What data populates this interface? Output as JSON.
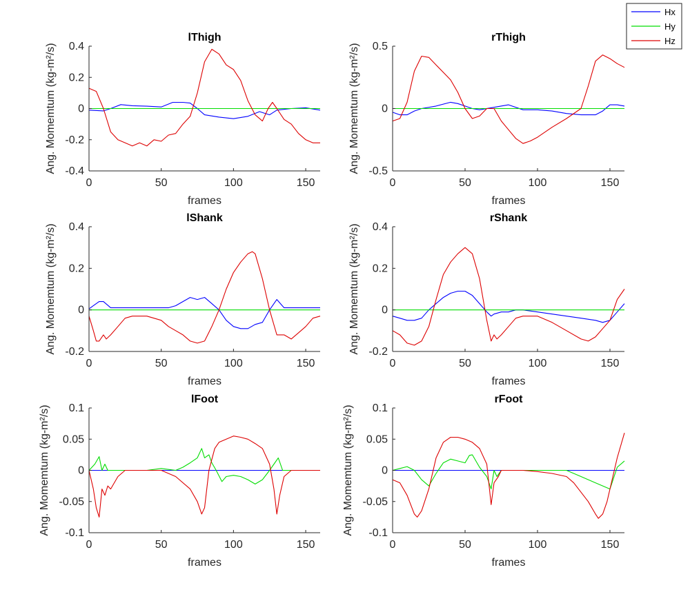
{
  "legend": {
    "entries": [
      {
        "name": "Hx",
        "color": "#0000ff"
      },
      {
        "name": "Hy",
        "color": "#00dd00"
      },
      {
        "name": "Hz",
        "color": "#dd0000"
      }
    ]
  },
  "chart_data": [
    {
      "type": "line",
      "title": "lThigh",
      "xlabel": "frames",
      "ylabel": "Ang. Momemtum (kg-m²/s)",
      "xlim": [
        0,
        160
      ],
      "ylim": [
        -0.4,
        0.4
      ],
      "xticks": [
        0,
        50,
        100,
        150
      ],
      "xtick_labels": [
        "0",
        "50",
        "100",
        "150"
      ],
      "yticks": [
        -0.4,
        -0.2,
        0,
        0.2,
        0.4
      ],
      "ytick_labels": [
        "-0.4",
        "-0.2",
        "0",
        "0.2",
        "0.4"
      ],
      "series": [
        {
          "name": "Hx",
          "color": "#0000ff",
          "x": [
            0,
            10,
            15,
            22,
            30,
            40,
            50,
            58,
            65,
            70,
            75,
            80,
            90,
            100,
            110,
            118,
            125,
            130,
            140,
            150,
            160
          ],
          "y": [
            -0.01,
            -0.015,
            0.0,
            0.025,
            0.018,
            0.015,
            0.01,
            0.04,
            0.04,
            0.035,
            0.0,
            -0.04,
            -0.055,
            -0.065,
            -0.05,
            -0.02,
            -0.04,
            -0.01,
            0.0,
            0.005,
            -0.01
          ]
        },
        {
          "name": "Hy",
          "color": "#00dd00",
          "x": [
            0,
            160
          ],
          "y": [
            0.0,
            0.0
          ]
        },
        {
          "name": "Hz",
          "color": "#dd0000",
          "x": [
            0,
            5,
            10,
            15,
            20,
            30,
            35,
            40,
            45,
            50,
            55,
            60,
            65,
            70,
            75,
            80,
            85,
            90,
            95,
            100,
            105,
            110,
            115,
            120,
            124,
            127,
            130,
            135,
            140,
            145,
            150,
            155,
            160
          ],
          "y": [
            0.13,
            0.11,
            0.0,
            -0.15,
            -0.2,
            -0.24,
            -0.22,
            -0.24,
            -0.2,
            -0.21,
            -0.17,
            -0.16,
            -0.1,
            -0.05,
            0.1,
            0.3,
            0.38,
            0.35,
            0.28,
            0.25,
            0.18,
            0.05,
            -0.04,
            -0.08,
            0.0,
            0.04,
            0.0,
            -0.07,
            -0.1,
            -0.16,
            -0.2,
            -0.22,
            -0.22
          ]
        }
      ]
    },
    {
      "type": "line",
      "title": "rThigh",
      "xlabel": "frames",
      "ylabel": "Ang. Momemtum (kg-m²/s)",
      "xlim": [
        0,
        160
      ],
      "ylim": [
        -0.5,
        0.5
      ],
      "xticks": [
        0,
        50,
        100,
        150
      ],
      "xtick_labels": [
        "0",
        "50",
        "100",
        "150"
      ],
      "yticks": [
        -0.5,
        0,
        0.5
      ],
      "ytick_labels": [
        "-0.5",
        "0",
        "0.5"
      ],
      "series": [
        {
          "name": "Hx",
          "color": "#0000ff",
          "x": [
            0,
            5,
            10,
            15,
            20,
            30,
            40,
            45,
            50,
            55,
            60,
            70,
            80,
            90,
            100,
            110,
            120,
            130,
            140,
            145,
            150,
            155,
            160
          ],
          "y": [
            -0.03,
            -0.05,
            -0.05,
            -0.02,
            0.0,
            0.02,
            0.05,
            0.04,
            0.02,
            0.0,
            -0.01,
            0.01,
            0.03,
            -0.01,
            -0.01,
            -0.02,
            -0.04,
            -0.05,
            -0.05,
            -0.02,
            0.03,
            0.03,
            0.02
          ]
        },
        {
          "name": "Hy",
          "color": "#00dd00",
          "x": [
            0,
            160
          ],
          "y": [
            0.0,
            0.0
          ]
        },
        {
          "name": "Hz",
          "color": "#dd0000",
          "x": [
            0,
            5,
            10,
            15,
            20,
            25,
            30,
            35,
            40,
            45,
            50,
            55,
            60,
            65,
            70,
            75,
            80,
            85,
            90,
            95,
            100,
            110,
            120,
            130,
            135,
            140,
            145,
            150,
            155,
            160
          ],
          "y": [
            -0.1,
            -0.08,
            0.05,
            0.3,
            0.42,
            0.41,
            0.35,
            0.29,
            0.23,
            0.13,
            0.0,
            -0.08,
            -0.06,
            0.0,
            0.0,
            -0.1,
            -0.17,
            -0.24,
            -0.28,
            -0.26,
            -0.23,
            -0.15,
            -0.08,
            0.0,
            0.18,
            0.38,
            0.43,
            0.4,
            0.36,
            0.33
          ]
        }
      ]
    },
    {
      "type": "line",
      "title": "lShank",
      "xlabel": "frames",
      "ylabel": "Ang. Momemtum (kg-m²/s)",
      "xlim": [
        0,
        160
      ],
      "ylim": [
        -0.2,
        0.4
      ],
      "xticks": [
        0,
        50,
        100,
        150
      ],
      "xtick_labels": [
        "0",
        "50",
        "100",
        "150"
      ],
      "yticks": [
        -0.2,
        0,
        0.2,
        0.4
      ],
      "ytick_labels": [
        "-0.2",
        "0",
        "0.2",
        "0.4"
      ],
      "series": [
        {
          "name": "Hx",
          "color": "#0000ff",
          "x": [
            0,
            3,
            7,
            10,
            15,
            20,
            30,
            40,
            50,
            55,
            60,
            65,
            70,
            75,
            80,
            85,
            90,
            95,
            100,
            105,
            110,
            115,
            120,
            125,
            130,
            135,
            140,
            150,
            160
          ],
          "y": [
            0.005,
            0.02,
            0.04,
            0.04,
            0.01,
            0.01,
            0.01,
            0.01,
            0.01,
            0.01,
            0.02,
            0.04,
            0.06,
            0.05,
            0.06,
            0.03,
            0.0,
            -0.05,
            -0.08,
            -0.09,
            -0.09,
            -0.07,
            -0.06,
            0.0,
            0.05,
            0.01,
            0.01,
            0.01,
            0.01
          ]
        },
        {
          "name": "Hy",
          "color": "#00dd00",
          "x": [
            0,
            160
          ],
          "y": [
            0.0,
            0.0
          ]
        },
        {
          "name": "Hz",
          "color": "#dd0000",
          "x": [
            0,
            3,
            5,
            7,
            10,
            12,
            15,
            20,
            25,
            30,
            40,
            50,
            55,
            60,
            65,
            70,
            75,
            80,
            85,
            90,
            95,
            100,
            105,
            110,
            113,
            115,
            120,
            125,
            130,
            135,
            140,
            145,
            150,
            155,
            160
          ],
          "y": [
            -0.03,
            -0.1,
            -0.15,
            -0.15,
            -0.12,
            -0.14,
            -0.12,
            -0.08,
            -0.04,
            -0.03,
            -0.03,
            -0.05,
            -0.08,
            -0.1,
            -0.12,
            -0.15,
            -0.16,
            -0.15,
            -0.08,
            0.0,
            0.1,
            0.18,
            0.23,
            0.27,
            0.28,
            0.27,
            0.15,
            0.0,
            -0.12,
            -0.12,
            -0.14,
            -0.11,
            -0.08,
            -0.04,
            -0.03
          ]
        }
      ]
    },
    {
      "type": "line",
      "title": "rShank",
      "xlabel": "frames",
      "ylabel": "Ang. Momemtum (kg-m²/s)",
      "xlim": [
        0,
        160
      ],
      "ylim": [
        -0.2,
        0.4
      ],
      "xticks": [
        0,
        50,
        100,
        150
      ],
      "xtick_labels": [
        "0",
        "50",
        "100",
        "150"
      ],
      "yticks": [
        -0.2,
        0,
        0.2,
        0.4
      ],
      "ytick_labels": [
        "-0.2",
        "0",
        "0.2",
        "0.4"
      ],
      "series": [
        {
          "name": "Hx",
          "color": "#0000ff",
          "x": [
            0,
            5,
            10,
            15,
            20,
            25,
            30,
            35,
            40,
            45,
            50,
            55,
            60,
            65,
            68,
            70,
            75,
            80,
            85,
            90,
            100,
            110,
            120,
            130,
            140,
            145,
            150,
            155,
            160
          ],
          "y": [
            -0.03,
            -0.04,
            -0.05,
            -0.05,
            -0.04,
            0.0,
            0.03,
            0.06,
            0.08,
            0.09,
            0.09,
            0.07,
            0.03,
            -0.01,
            -0.03,
            -0.02,
            -0.01,
            -0.01,
            0.0,
            0.0,
            -0.01,
            -0.02,
            -0.03,
            -0.04,
            -0.05,
            -0.06,
            -0.05,
            -0.01,
            0.03
          ]
        },
        {
          "name": "Hy",
          "color": "#00dd00",
          "x": [
            0,
            160
          ],
          "y": [
            0.0,
            0.0
          ]
        },
        {
          "name": "Hz",
          "color": "#dd0000",
          "x": [
            0,
            5,
            10,
            15,
            20,
            25,
            30,
            35,
            40,
            45,
            50,
            55,
            60,
            65,
            68,
            70,
            72,
            75,
            80,
            85,
            90,
            100,
            110,
            120,
            130,
            135,
            140,
            145,
            150,
            155,
            160
          ],
          "y": [
            -0.1,
            -0.12,
            -0.16,
            -0.17,
            -0.15,
            -0.08,
            0.05,
            0.17,
            0.23,
            0.27,
            0.3,
            0.27,
            0.15,
            -0.05,
            -0.15,
            -0.12,
            -0.14,
            -0.12,
            -0.08,
            -0.04,
            -0.03,
            -0.03,
            -0.06,
            -0.1,
            -0.14,
            -0.15,
            -0.13,
            -0.09,
            -0.05,
            0.05,
            0.1
          ]
        }
      ]
    },
    {
      "type": "line",
      "title": "lFoot",
      "xlabel": "frames",
      "ylabel": "Ang. Momemtum (kg-m²/s)",
      "xlim": [
        0,
        160
      ],
      "ylim": [
        -0.1,
        0.1
      ],
      "xticks": [
        0,
        50,
        100,
        150
      ],
      "xtick_labels": [
        "0",
        "50",
        "100",
        "150"
      ],
      "yticks": [
        -0.1,
        -0.05,
        0,
        0.05,
        0.1
      ],
      "ytick_labels": [
        "-0.1",
        "-0.05",
        "0",
        "0.05",
        "0.1"
      ],
      "series": [
        {
          "name": "Hx",
          "color": "#0000ff",
          "x": [
            0,
            160
          ],
          "y": [
            0.0,
            0.0
          ]
        },
        {
          "name": "Hy",
          "color": "#00dd00",
          "x": [
            0,
            4,
            7,
            9,
            11,
            13,
            15,
            20,
            30,
            40,
            50,
            60,
            65,
            70,
            75,
            78,
            80,
            83,
            85,
            88,
            92,
            95,
            100,
            105,
            110,
            115,
            120,
            125,
            128,
            131,
            134,
            140,
            150,
            160
          ],
          "y": [
            0.0,
            0.01,
            0.022,
            0.0,
            0.01,
            0.0,
            0.0,
            0.0,
            0.0,
            0.0,
            0.003,
            0.0,
            0.005,
            0.012,
            0.02,
            0.035,
            0.02,
            0.025,
            0.012,
            0.0,
            -0.018,
            -0.01,
            -0.008,
            -0.01,
            -0.015,
            -0.022,
            -0.015,
            0.0,
            0.01,
            0.02,
            0.0,
            0.0,
            0.0,
            0.0
          ]
        },
        {
          "name": "Hz",
          "color": "#dd0000",
          "x": [
            0,
            3,
            5,
            7,
            9,
            11,
            13,
            15,
            20,
            25,
            30,
            40,
            50,
            60,
            70,
            75,
            78,
            80,
            83,
            87,
            90,
            95,
            100,
            105,
            110,
            115,
            120,
            125,
            128,
            130,
            132,
            135,
            140,
            150,
            160
          ],
          "y": [
            0.0,
            -0.03,
            -0.06,
            -0.075,
            -0.03,
            -0.04,
            -0.025,
            -0.03,
            -0.01,
            0.0,
            0.0,
            0.0,
            0.0,
            -0.01,
            -0.03,
            -0.05,
            -0.07,
            -0.06,
            0.0,
            0.035,
            0.045,
            0.05,
            0.055,
            0.053,
            0.05,
            0.043,
            0.035,
            0.01,
            -0.03,
            -0.07,
            -0.04,
            -0.01,
            0.0,
            0.0,
            0.0
          ]
        }
      ]
    },
    {
      "type": "line",
      "title": "rFoot",
      "xlabel": "frames",
      "ylabel": "Ang. Momemtum (kg-m²/s)",
      "xlim": [
        0,
        160
      ],
      "ylim": [
        -0.1,
        0.1
      ],
      "xticks": [
        0,
        50,
        100,
        150
      ],
      "xtick_labels": [
        "0",
        "50",
        "100",
        "150"
      ],
      "yticks": [
        -0.1,
        -0.05,
        0,
        0.05,
        0.1
      ],
      "ytick_labels": [
        "-0.1",
        "-0.05",
        "0",
        "0.05",
        "0.1"
      ],
      "series": [
        {
          "name": "Hx",
          "color": "#0000ff",
          "x": [
            0,
            160
          ],
          "y": [
            0.0,
            0.0
          ]
        },
        {
          "name": "Hy",
          "color": "#00dd00",
          "x": [
            0,
            5,
            10,
            15,
            20,
            25,
            30,
            35,
            40,
            45,
            50,
            53,
            55,
            60,
            65,
            68,
            70,
            72,
            75,
            80,
            90,
            100,
            110,
            120,
            130,
            140,
            145,
            150,
            155,
            160
          ],
          "y": [
            0.0,
            0.003,
            0.006,
            0.0,
            -0.015,
            -0.025,
            -0.005,
            0.012,
            0.018,
            0.015,
            0.012,
            0.024,
            0.025,
            0.005,
            -0.01,
            -0.03,
            0.0,
            -0.01,
            0.0,
            0.0,
            0.0,
            0.0,
            0.0,
            0.0,
            -0.01,
            -0.02,
            -0.025,
            -0.03,
            0.005,
            0.015
          ]
        },
        {
          "name": "Hz",
          "color": "#dd0000",
          "x": [
            0,
            5,
            10,
            15,
            17,
            20,
            25,
            30,
            35,
            40,
            45,
            50,
            55,
            60,
            65,
            68,
            70,
            73,
            75,
            80,
            90,
            100,
            110,
            120,
            125,
            130,
            135,
            140,
            142,
            145,
            148,
            150,
            153,
            155,
            160
          ],
          "y": [
            -0.015,
            -0.02,
            -0.04,
            -0.07,
            -0.075,
            -0.065,
            -0.03,
            0.02,
            0.045,
            0.053,
            0.053,
            0.05,
            0.045,
            0.035,
            0.01,
            -0.055,
            -0.02,
            -0.01,
            0.0,
            0.0,
            0.0,
            -0.002,
            -0.005,
            -0.01,
            -0.02,
            -0.035,
            -0.05,
            -0.07,
            -0.077,
            -0.07,
            -0.05,
            -0.03,
            0.0,
            0.02,
            0.06
          ]
        }
      ]
    }
  ]
}
